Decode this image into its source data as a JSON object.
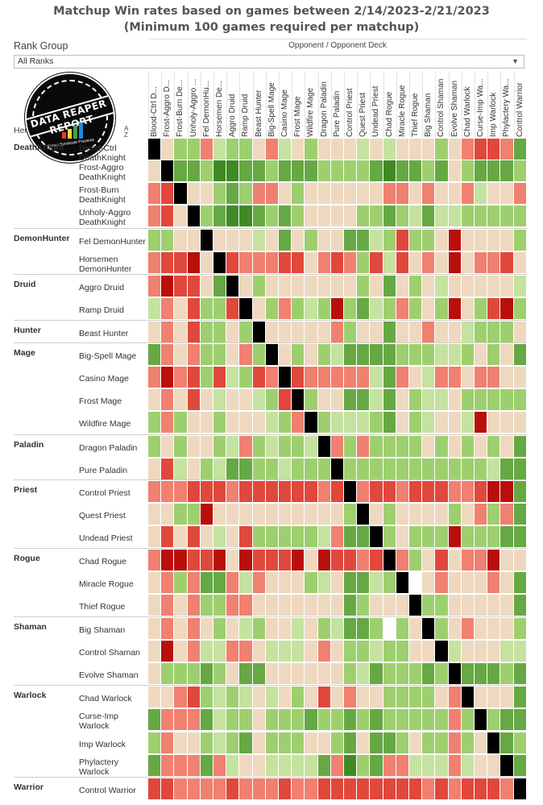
{
  "title_line1": "Matchup Win rates based on games between 2/14/2023-2/21/2023",
  "title_line2": "(Minimum 100 games required per matchup)",
  "filter": {
    "label": "Rank Group",
    "value": "All Ranks"
  },
  "opponent_header": "Opponent / Opponent Deck",
  "hero_column_header": "Hero / Hero Deck",
  "logo": {
    "text": "DATA REAPER REPORT",
    "subtext": "Vicious Syndicate Presents"
  },
  "colors": {
    "self": "#000000",
    "empty": "#ffffff",
    "scale": [
      "#b80f0a",
      "#e0483c",
      "#f08070",
      "#eed9c0",
      "#c5e2a0",
      "#9ecf6f",
      "#66a843",
      "#3f8a24"
    ]
  },
  "chart_data": {
    "type": "heatmap",
    "title": "Matchup Win rates based on games between 2/14/2023-2/21/2023",
    "subtitle": "(Minimum 100 games required per matchup)",
    "x_label": "Opponent / Opponent Deck",
    "y_label": "Hero / Hero Deck",
    "value_encoding": "color level 0 (strongly unfavored, dark red) to 7 (strongly favored, dark green); -1 = mirror (black); null = no data (white)",
    "columns": [
      "Blood-Ctrl DeathKnight",
      "Frost-Aggro DeathKnight",
      "Frost-Burn DeathKnight",
      "Unholy-Aggro DeathKnight",
      "Fel DemonHunter",
      "Horsemen DemonHunter",
      "Aggro Druid",
      "Ramp Druid",
      "Beast Hunter",
      "Big-Spell Mage",
      "Casino Mage",
      "Frost Mage",
      "Wildfire Mage",
      "Dragon Paladin",
      "Pure Paladin",
      "Control Priest",
      "Quest Priest",
      "Undead Priest",
      "Chad Rogue",
      "Miracle Rogue",
      "Thief Rogue",
      "Big Shaman",
      "Control Shaman",
      "Evolve Shaman",
      "Chad Warlock",
      "Curse-Imp Warlock",
      "Imp Warlock",
      "Phylactery Warlock",
      "Control Warrior"
    ],
    "column_labels": [
      "Blood-Ctrl D...",
      "Frost-Aggro D...",
      "Frost-Burn De...",
      "Unholy-Aggro ...",
      "Fel DemonHu...",
      "Horsemen De...",
      "Aggro Druid",
      "Ramp Druid",
      "Beast Hunter",
      "Big-Spell Mage",
      "Casino Mage",
      "Frost Mage",
      "Wildfire Mage",
      "Dragon Paladin",
      "Pure Paladin",
      "Control Priest",
      "Quest Priest",
      "Undead Priest",
      "Chad Rogue",
      "Miracle Rogue",
      "Thief Rogue",
      "Big Shaman",
      "Control Shaman",
      "Evolve Shaman",
      "Chad Warlock",
      "Curse-Imp Wa...",
      "Imp Warlock",
      "Phylactery Wa...",
      "Control Warrior"
    ],
    "groups": [
      {
        "class": "DeathKnight",
        "decks": [
          "Blood-Ctrl DeathKnight",
          "Frost-Aggro DeathKnight",
          "Frost-Burn DeathKnight",
          "Unholy-Aggro DeathKnight"
        ]
      },
      {
        "class": "DemonHunter",
        "decks": [
          "Fel DemonHunter",
          "Horsemen DemonHunter"
        ]
      },
      {
        "class": "Druid",
        "decks": [
          "Aggro Druid",
          "Ramp Druid"
        ]
      },
      {
        "class": "Hunter",
        "decks": [
          "Beast Hunter"
        ]
      },
      {
        "class": "Mage",
        "decks": [
          "Big-Spell Mage",
          "Casino Mage",
          "Frost Mage",
          "Wildfire Mage"
        ]
      },
      {
        "class": "Paladin",
        "decks": [
          "Dragon Paladin",
          "Pure Paladin"
        ]
      },
      {
        "class": "Priest",
        "decks": [
          "Control Priest",
          "Quest Priest",
          "Undead Priest"
        ]
      },
      {
        "class": "Rogue",
        "decks": [
          "Chad Rogue",
          "Miracle Rogue",
          "Thief Rogue"
        ]
      },
      {
        "class": "Shaman",
        "decks": [
          "Big Shaman",
          "Control Shaman",
          "Evolve Shaman"
        ]
      },
      {
        "class": "Warlock",
        "decks": [
          "Chad Warlock",
          "Curse-Imp Warlock",
          "Imp Warlock",
          "Phylactery Warlock"
        ]
      },
      {
        "class": "Warrior",
        "decks": [
          "Control Warrior"
        ]
      }
    ],
    "row_labels": [
      "Blood-Ctrl\nDeathKnight",
      "Frost-Aggro\nDeathKnight",
      "Frost-Burn\nDeathKnight",
      "Unholy-Aggro\nDeathKnight",
      "Fel DemonHunter",
      "Horsemen\nDemonHunter",
      "Aggro Druid",
      "Ramp Druid",
      "Beast Hunter",
      "Big-Spell Mage",
      "Casino Mage",
      "Frost Mage",
      "Wildfire Mage",
      "Dragon Paladin",
      "Pure Paladin",
      "Control Priest",
      "Quest Priest",
      "Undead Priest",
      "Chad Rogue",
      "Miracle Rogue",
      "Thief Rogue",
      "Big Shaman",
      "Control Shaman",
      "Evolve Shaman",
      "Chad Warlock",
      "Curse-Imp\nWarlock",
      "Imp Warlock",
      "Phylactery\nWarlock",
      "Control Warrior"
    ],
    "values": [
      [
        -1,
        3,
        5,
        5,
        2,
        4,
        5,
        5,
        3,
        2,
        4,
        3,
        5,
        3,
        3,
        3,
        4,
        3,
        4,
        3,
        3,
        3,
        5,
        3,
        2,
        1,
        1,
        2,
        6
      ],
      [
        3,
        -1,
        6,
        6,
        5,
        7,
        7,
        6,
        6,
        5,
        6,
        6,
        6,
        5,
        5,
        5,
        5,
        6,
        7,
        6,
        6,
        5,
        6,
        3,
        5,
        6,
        6,
        6,
        5
      ],
      [
        2,
        1,
        -1,
        3,
        3,
        5,
        6,
        5,
        2,
        2,
        3,
        5,
        3,
        3,
        3,
        3,
        3,
        3,
        2,
        2,
        3,
        2,
        3,
        3,
        2,
        4,
        3,
        3,
        2
      ],
      [
        2,
        1,
        3,
        -1,
        5,
        6,
        7,
        7,
        6,
        5,
        6,
        5,
        3,
        3,
        3,
        3,
        5,
        5,
        6,
        5,
        4,
        6,
        4,
        4,
        5,
        5,
        5,
        5,
        5
      ]
    ],
    "values_cont": [
      [
        5,
        5,
        3,
        3,
        -1,
        3,
        3,
        3,
        4,
        3,
        6,
        3,
        5,
        3,
        3,
        6,
        6,
        4,
        5,
        1,
        5,
        5,
        3,
        0,
        3,
        3,
        3,
        3,
        5
      ],
      [
        2,
        1,
        1,
        0,
        3,
        -1,
        1,
        2,
        2,
        2,
        1,
        1,
        3,
        2,
        1,
        2,
        5,
        1,
        4,
        1,
        3,
        2,
        3,
        0,
        3,
        2,
        2,
        1,
        3
      ],
      [
        2,
        0,
        1,
        1,
        3,
        6,
        -1,
        3,
        5,
        3,
        3,
        3,
        3,
        3,
        3,
        3,
        5,
        3,
        6,
        3,
        5,
        3,
        4,
        3,
        3,
        3,
        3,
        3,
        4
      ],
      [
        4,
        2,
        3,
        1,
        5,
        5,
        1,
        -1,
        3,
        5,
        2,
        5,
        4,
        5,
        0,
        5,
        6,
        4,
        5,
        2,
        5,
        3,
        5,
        0,
        3,
        5,
        1,
        0,
        5
      ],
      [
        3,
        2,
        3,
        1,
        5,
        5,
        3,
        5,
        -1,
        3,
        3,
        3,
        3,
        3,
        2,
        5,
        3,
        3,
        6,
        3,
        3,
        2,
        3,
        3,
        4,
        5,
        5,
        5,
        3
      ],
      [
        6,
        2,
        3,
        2,
        5,
        5,
        3,
        2,
        5,
        -1,
        3,
        5,
        3,
        5,
        4,
        6,
        6,
        6,
        6,
        5,
        5,
        5,
        4,
        4,
        5,
        3,
        5,
        3,
        6
      ],
      [
        2,
        0,
        2,
        1,
        5,
        1,
        4,
        5,
        1,
        2,
        -1,
        1,
        2,
        2,
        2,
        2,
        2,
        4,
        6,
        2,
        3,
        4,
        2,
        2,
        3,
        2,
        2,
        3,
        3
      ],
      [
        3,
        2,
        3,
        1,
        3,
        4,
        3,
        3,
        4,
        5,
        1,
        -1,
        5,
        3,
        3,
        6,
        6,
        4,
        6,
        3,
        5,
        4,
        4,
        3,
        5,
        5,
        5,
        5,
        5
      ],
      [
        5,
        2,
        5,
        3,
        3,
        5,
        3,
        3,
        3,
        4,
        5,
        2,
        -1,
        5,
        4,
        4,
        4,
        5,
        6,
        3,
        5,
        4,
        3,
        3,
        4,
        0,
        3,
        3,
        3
      ],
      [
        5,
        3,
        5,
        3,
        3,
        5,
        4,
        2,
        5,
        4,
        5,
        5,
        4,
        -1,
        2,
        5,
        2,
        5,
        5,
        5,
        5,
        3,
        5,
        3,
        5,
        3,
        5,
        3,
        6
      ],
      [
        3,
        1,
        4,
        3,
        5,
        4,
        6,
        6,
        5,
        5,
        4,
        5,
        5,
        5,
        -1,
        5,
        5,
        5,
        5,
        5,
        5,
        5,
        5,
        5,
        5,
        5,
        4,
        6,
        6
      ],
      [
        2,
        2,
        2,
        1,
        1,
        1,
        2,
        1,
        1,
        1,
        1,
        1,
        1,
        2,
        1,
        -1,
        2,
        1,
        1,
        2,
        1,
        1,
        1,
        2,
        2,
        1,
        0,
        0,
        6
      ],
      [
        3,
        3,
        5,
        5,
        0,
        3,
        3,
        3,
        3,
        3,
        3,
        3,
        3,
        3,
        3,
        5,
        -1,
        3,
        5,
        3,
        3,
        3,
        3,
        5,
        3,
        2,
        5,
        2,
        6
      ],
      [
        3,
        1,
        3,
        1,
        3,
        4,
        3,
        1,
        5,
        5,
        5,
        5,
        5,
        4,
        2,
        6,
        6,
        -1,
        5,
        3,
        5,
        5,
        5,
        0,
        5,
        5,
        5,
        6,
        6
      ]
    ],
    "values_cont2": [
      [
        2,
        0,
        0,
        1,
        1,
        0,
        3,
        0,
        1,
        1,
        1,
        0,
        3,
        0,
        1,
        1,
        2,
        1,
        -1,
        2,
        5,
        3,
        1,
        3,
        2,
        2,
        0,
        3,
        3
      ],
      [
        3,
        2,
        5,
        2,
        6,
        6,
        2,
        4,
        2,
        3,
        3,
        3,
        5,
        4,
        3,
        6,
        6,
        4,
        5,
        -1,
        null,
        3,
        2,
        3,
        3,
        3,
        2,
        3,
        6
      ],
      [
        3,
        2,
        3,
        2,
        5,
        5,
        2,
        2,
        3,
        3,
        3,
        3,
        3,
        3,
        3,
        6,
        5,
        3,
        3,
        3,
        -1,
        5,
        5,
        3,
        3,
        3,
        3,
        3,
        6
      ],
      [
        3,
        2,
        3,
        2,
        3,
        5,
        3,
        4,
        5,
        3,
        3,
        4,
        3,
        5,
        4,
        6,
        6,
        5,
        null,
        5,
        3,
        -1,
        5,
        3,
        2,
        3,
        3,
        3,
        5
      ],
      [
        3,
        0,
        3,
        2,
        4,
        4,
        2,
        2,
        3,
        4,
        4,
        4,
        3,
        2,
        3,
        5,
        5,
        4,
        5,
        5,
        3,
        3,
        -1,
        4,
        3,
        3,
        3,
        4,
        4
      ],
      [
        3,
        5,
        5,
        5,
        6,
        5,
        3,
        6,
        6,
        3,
        3,
        3,
        3,
        3,
        3,
        5,
        4,
        6,
        5,
        5,
        5,
        6,
        5,
        -1,
        6,
        6,
        6,
        5,
        6
      ]
    ],
    "values_cont3": [
      [
        3,
        3,
        2,
        1,
        5,
        4,
        5,
        4,
        3,
        4,
        3,
        5,
        3,
        1,
        3,
        2,
        3,
        3,
        5,
        5,
        5,
        5,
        3,
        2,
        -1,
        3,
        3,
        3,
        6
      ],
      [
        6,
        2,
        2,
        2,
        6,
        4,
        5,
        5,
        3,
        5,
        5,
        5,
        6,
        5,
        5,
        6,
        5,
        6,
        5,
        5,
        5,
        5,
        5,
        2,
        5,
        -1,
        5,
        6,
        6
      ],
      [
        5,
        2,
        3,
        3,
        5,
        4,
        5,
        6,
        3,
        5,
        5,
        5,
        3,
        3,
        5,
        6,
        3,
        6,
        6,
        5,
        3,
        5,
        5,
        2,
        5,
        3,
        -1,
        6,
        5
      ],
      [
        6,
        2,
        2,
        2,
        6,
        2,
        4,
        3,
        3,
        4,
        4,
        4,
        4,
        6,
        2,
        7,
        5,
        6,
        2,
        2,
        4,
        4,
        4,
        2,
        4,
        3,
        3,
        -1,
        6
      ],
      [
        1,
        1,
        2,
        2,
        2,
        2,
        1,
        2,
        2,
        2,
        1,
        2,
        2,
        1,
        1,
        1,
        1,
        1,
        1,
        1,
        1,
        2,
        1,
        2,
        1,
        1,
        1,
        2,
        -1
      ]
    ]
  }
}
